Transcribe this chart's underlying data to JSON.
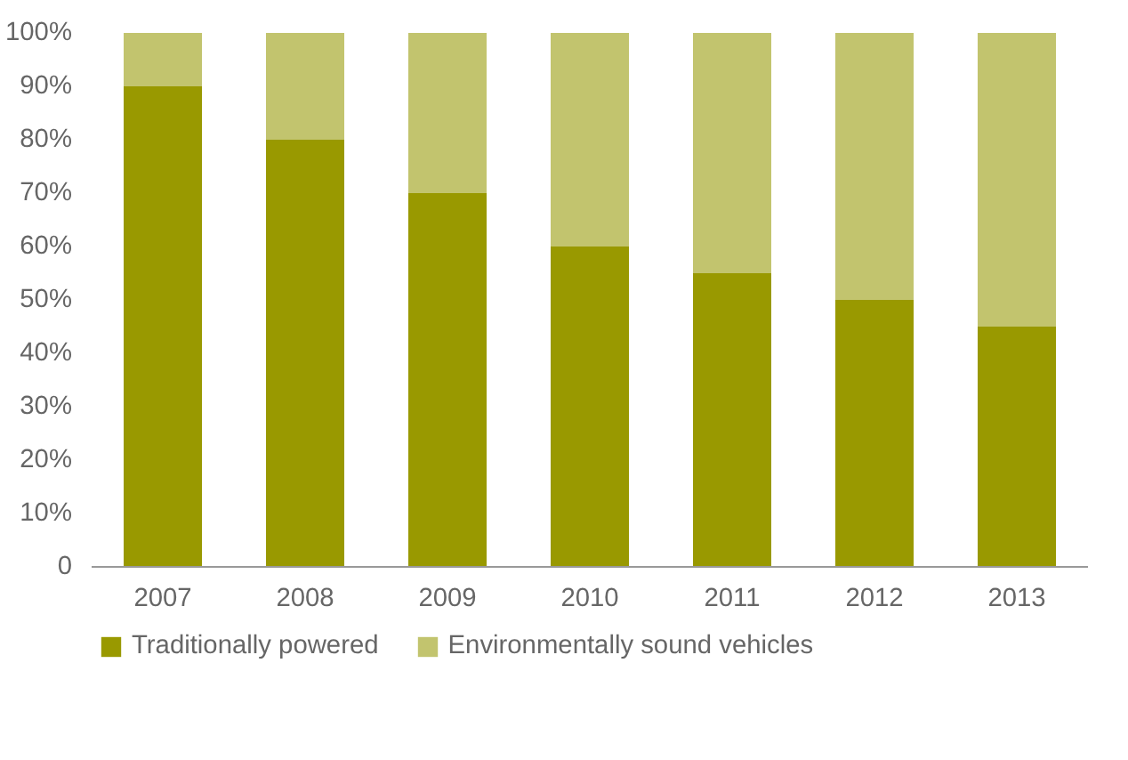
{
  "chart_data": {
    "type": "bar",
    "stacked": true,
    "categories": [
      "2007",
      "2008",
      "2009",
      "2010",
      "2011",
      "2012",
      "2013"
    ],
    "series": [
      {
        "name": "Traditionally powered",
        "color": "#999900",
        "values": [
          90,
          80,
          70,
          60,
          55,
          50,
          45
        ]
      },
      {
        "name": "Environmentally sound vehicles",
        "color": "#c2c46e",
        "values": [
          10,
          20,
          30,
          40,
          45,
          50,
          55
        ]
      }
    ],
    "ylim": [
      0,
      100
    ],
    "yticks": [
      {
        "value": 0,
        "label": "0"
      },
      {
        "value": 10,
        "label": "10%"
      },
      {
        "value": 20,
        "label": "20%"
      },
      {
        "value": 30,
        "label": "30%"
      },
      {
        "value": 40,
        "label": "40%"
      },
      {
        "value": 50,
        "label": "50%"
      },
      {
        "value": 60,
        "label": "60%"
      },
      {
        "value": 70,
        "label": "70%"
      },
      {
        "value": 80,
        "label": "80%"
      },
      {
        "value": 90,
        "label": "90%"
      },
      {
        "value": 100,
        "label": "100%"
      }
    ],
    "grid": false,
    "legend": "bottom"
  }
}
